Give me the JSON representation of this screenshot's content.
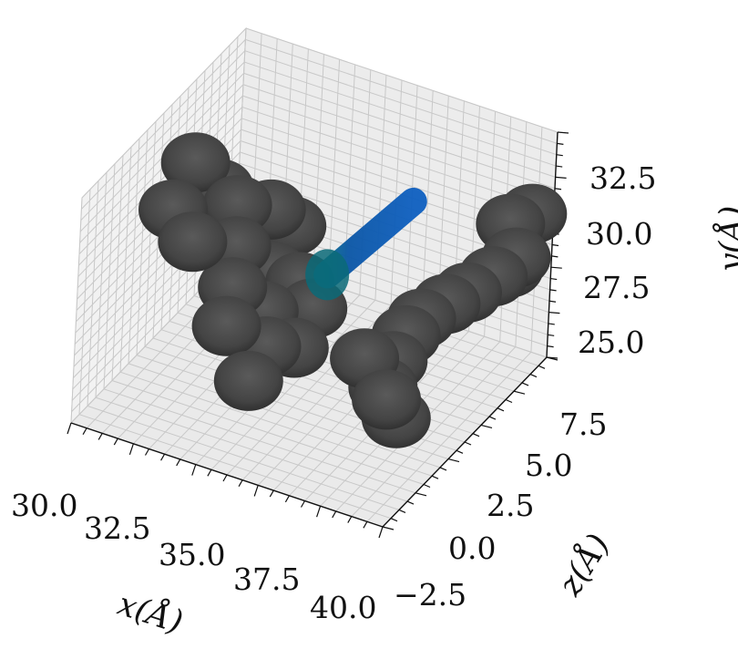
{
  "chart_data": {
    "type": "scatter3d",
    "title": "",
    "grid": true,
    "axes": {
      "x": {
        "label": "x(Å)",
        "ticks": [
          "30.0",
          "32.5",
          "35.0",
          "37.5",
          "40.0"
        ],
        "range": [
          29.5,
          41.0
        ]
      },
      "z": {
        "label": "z(Å)",
        "ticks": [
          "−2.5",
          "0.0",
          "2.5",
          "5.0",
          "7.5"
        ],
        "range": [
          -4.0,
          9.0
        ]
      },
      "y": {
        "label": "y(Å)",
        "ticks": [
          "25.0",
          "27.5",
          "30.0",
          "32.5"
        ],
        "range": [
          23.5,
          34.5
        ]
      }
    },
    "series": [
      {
        "kind": "atoms",
        "color": "#444444",
        "points": [
          {
            "x": 31.0,
            "y": 30.5,
            "z": 4.0
          },
          {
            "x": 30.3,
            "y": 31.8,
            "z": 3.5
          },
          {
            "x": 30.0,
            "y": 30.0,
            "z": 2.5
          },
          {
            "x": 31.2,
            "y": 29.6,
            "z": 1.5
          },
          {
            "x": 32.2,
            "y": 31.0,
            "z": 2.8
          },
          {
            "x": 33.0,
            "y": 30.5,
            "z": 3.8
          },
          {
            "x": 32.5,
            "y": 29.5,
            "z": 2.2
          },
          {
            "x": 33.6,
            "y": 29.7,
            "z": 4.2
          },
          {
            "x": 32.6,
            "y": 27.8,
            "z": 1.8
          },
          {
            "x": 33.5,
            "y": 28.2,
            "z": 3.0
          },
          {
            "x": 32.8,
            "y": 26.5,
            "z": 1.0
          },
          {
            "x": 33.7,
            "y": 27.0,
            "z": 2.0
          },
          {
            "x": 34.6,
            "y": 28.3,
            "z": 2.8
          },
          {
            "x": 35.2,
            "y": 27.4,
            "z": 2.6
          },
          {
            "x": 34.2,
            "y": 26.0,
            "z": 1.2
          },
          {
            "x": 34.9,
            "y": 25.8,
            "z": 1.9
          },
          {
            "x": 34.0,
            "y": 24.8,
            "z": 0.3
          },
          {
            "x": 37.5,
            "y": 24.0,
            "z": 3.5
          },
          {
            "x": 37.0,
            "y": 25.5,
            "z": 3.0
          },
          {
            "x": 37.6,
            "y": 25.0,
            "z": 4.0
          },
          {
            "x": 37.9,
            "y": 26.2,
            "z": 4.3
          },
          {
            "x": 38.3,
            "y": 27.0,
            "z": 4.6
          },
          {
            "x": 38.9,
            "y": 27.6,
            "z": 5.2
          },
          {
            "x": 39.4,
            "y": 28.0,
            "z": 5.8
          },
          {
            "x": 40.0,
            "y": 28.6,
            "z": 6.5
          },
          {
            "x": 40.5,
            "y": 29.3,
            "z": 7.2
          },
          {
            "x": 39.8,
            "y": 30.0,
            "z": 8.2
          },
          {
            "x": 40.4,
            "y": 30.5,
            "z": 8.6
          },
          {
            "x": 40.0,
            "y": 28.2,
            "z": 7.8
          },
          {
            "x": 38.3,
            "y": 24.7,
            "z": 2.0
          },
          {
            "x": 38.6,
            "y": 23.8,
            "z": 2.2
          }
        ]
      },
      {
        "kind": "ligand",
        "color": "#0a56a6",
        "start": {
          "x": 34.8,
          "y": 27.6,
          "z": 4.6
        },
        "end": {
          "x": 36.8,
          "y": 30.6,
          "z": 6.9
        }
      }
    ]
  }
}
